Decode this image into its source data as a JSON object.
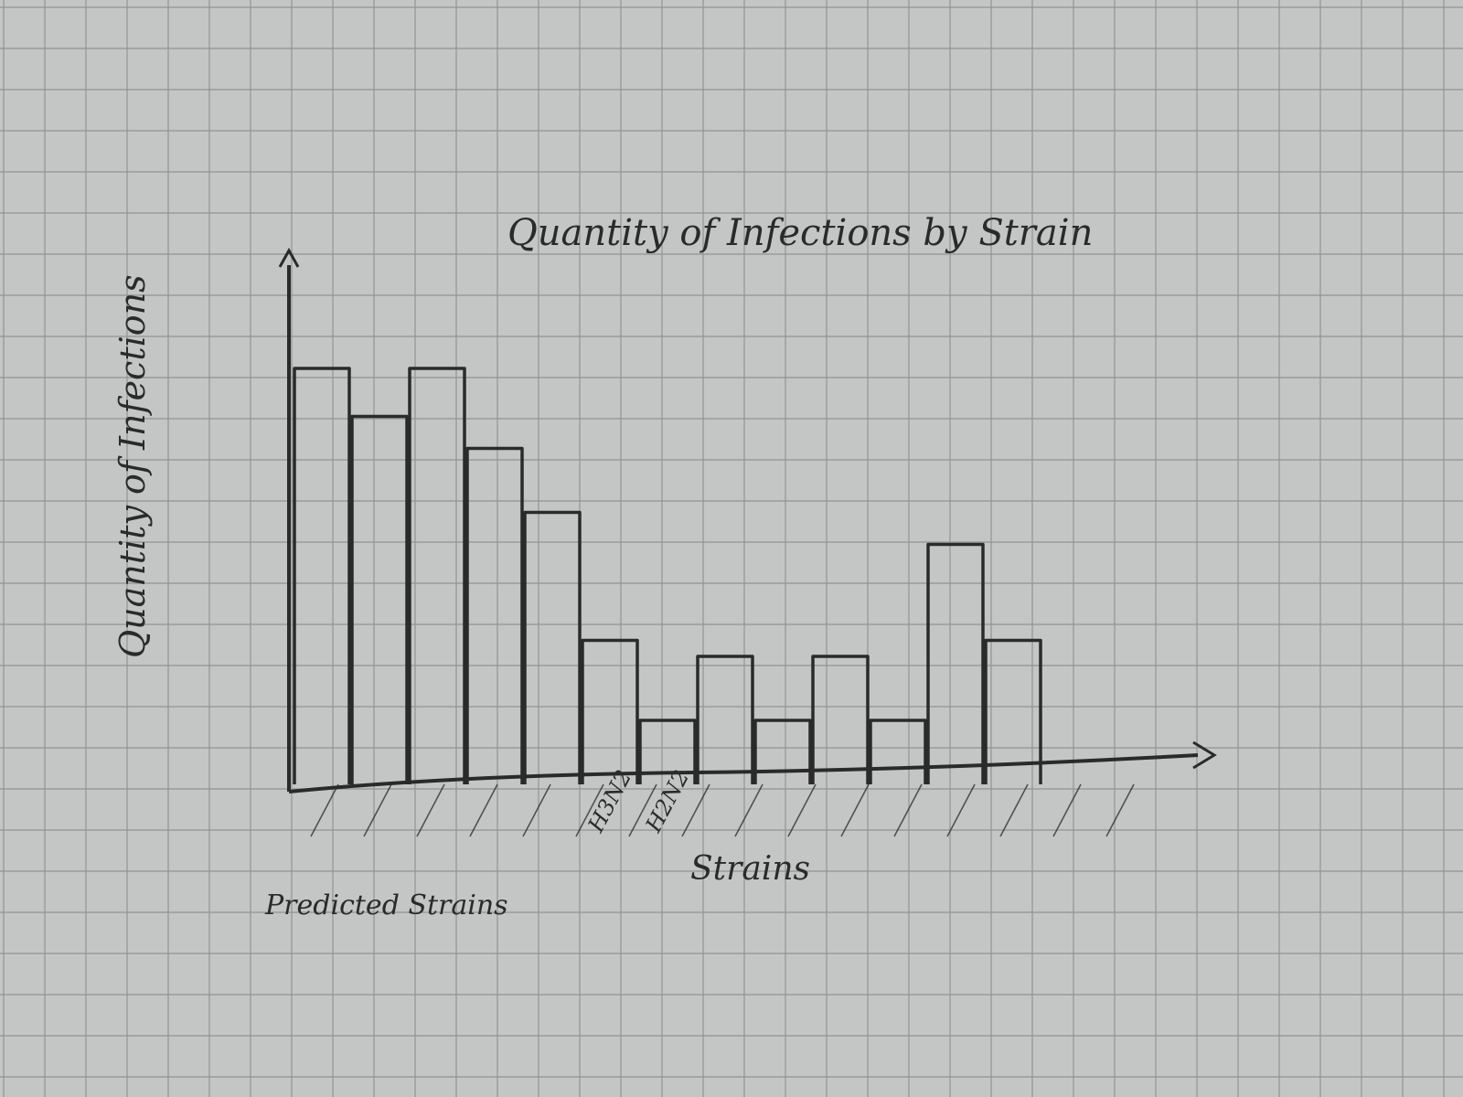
{
  "chart_data": {
    "type": "bar",
    "title": "Quantity of Infections by Strain",
    "xlabel": "Strains",
    "ylabel": "Quantity of Infections",
    "categories": [
      "",
      "",
      "",
      "",
      "",
      "H3N2",
      "H2N2",
      "",
      "",
      "",
      "",
      "",
      "",
      ""
    ],
    "values": [
      13,
      11.5,
      13,
      10.5,
      8.5,
      4.5,
      2,
      4,
      2,
      4,
      2,
      7.5,
      4.5,
      0
    ],
    "ylim": [
      0,
      16
    ],
    "grid": true,
    "shaded_region_label": "Predicted Strains",
    "legend": "none"
  },
  "colors": {
    "paper": "#c4c6c5",
    "grid": "#8f9493",
    "ink": "#2a2a2a"
  }
}
